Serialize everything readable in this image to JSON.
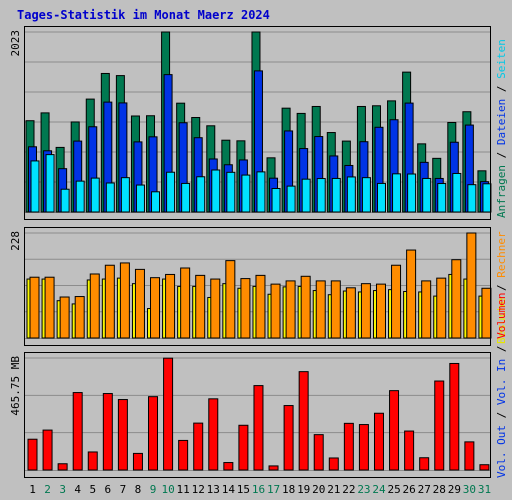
{
  "title": "Tages-Statistik im Monat Maerz 2024",
  "colors": {
    "title": "#0000cc",
    "anfragen": "#007850",
    "dateien": "#0033e6",
    "seiten": "#00e1ff",
    "besuche": "#f8f800",
    "rechner": "#ff8c00",
    "volumen": "#ff0000",
    "weekday": "#000000",
    "weekend": "#007850"
  },
  "right_labels": {
    "top": [
      {
        "text": "Anfragen",
        "color": "#007850"
      },
      {
        "text": "Dateien",
        "color": "#0033e6"
      },
      {
        "text": "Seiten",
        "color": "#00c8e6"
      }
    ],
    "middle": [
      {
        "text": "Besuche",
        "color": "#e6e600"
      },
      {
        "text": "Rechner",
        "color": "#ff8c00"
      }
    ],
    "bottom": [
      {
        "text": "Vol. Out",
        "color": "#0033e6"
      },
      {
        "text": "Vol. In",
        "color": "#0033e6"
      },
      {
        "text": "Volumen",
        "color": "#ff0000"
      }
    ]
  },
  "chart_data": [
    {
      "type": "bar",
      "name_hint": "Anfragen/Dateien/Seiten",
      "y_max_label": "2023",
      "ylim": [
        0,
        2023
      ],
      "categories": [
        "1",
        "2",
        "3",
        "4",
        "5",
        "6",
        "7",
        "8",
        "9",
        "10",
        "11",
        "12",
        "13",
        "14",
        "15",
        "16",
        "17",
        "18",
        "19",
        "20",
        "21",
        "22",
        "23",
        "24",
        "25",
        "26",
        "27",
        "28",
        "29",
        "30",
        "31"
      ],
      "weekend": [
        2,
        3,
        9,
        10,
        16,
        17,
        23,
        24,
        30,
        31
      ],
      "series": [
        {
          "name": "Anfragen",
          "values": [
            1026,
            1114,
            726,
            1012,
            1269,
            1557,
            1533,
            1079,
            1082,
            2023,
            1223,
            1062,
            969,
            807,
            800,
            2023,
            609,
            1167,
            1108,
            1186,
            893,
            797,
            1186,
            1194,
            1249,
            1572,
            766,
            603,
            1006,
            1127,
            463
          ]
        },
        {
          "name": "Dateien",
          "values": [
            733,
            688,
            487,
            797,
            958,
            1235,
            1226,
            788,
            845,
            1544,
            1003,
            835,
            596,
            531,
            585,
            1586,
            380,
            911,
            713,
            848,
            630,
            523,
            790,
            952,
            1037,
            1224,
            558,
            377,
            784,
            977,
            341
          ]
        },
        {
          "name": "Seiten",
          "values": [
            574,
            645,
            256,
            347,
            381,
            326,
            386,
            303,
            227,
            447,
            321,
            396,
            472,
            446,
            415,
            451,
            264,
            291,
            369,
            376,
            377,
            394,
            386,
            321,
            429,
            427,
            377,
            320,
            433,
            307,
            317
          ]
        }
      ]
    },
    {
      "type": "bar",
      "name_hint": "Besuche/Rechner",
      "y_max_label": "228",
      "ylim": [
        0,
        228
      ],
      "categories": [
        "1",
        "2",
        "3",
        "4",
        "5",
        "6",
        "7",
        "8",
        "9",
        "10",
        "11",
        "12",
        "13",
        "14",
        "15",
        "16",
        "17",
        "18",
        "19",
        "20",
        "21",
        "22",
        "23",
        "24",
        "25",
        "26",
        "27",
        "28",
        "29",
        "30",
        "31"
      ],
      "series": [
        {
          "name": "Besuche",
          "values": [
            128,
            128,
            81,
            74,
            126,
            128,
            130,
            118,
            64,
            128,
            112,
            112,
            88,
            118,
            108,
            112,
            95,
            111,
            112,
            103,
            94,
            102,
            100,
            103,
            105,
            101,
            100,
            91,
            138,
            128,
            91
          ]
        },
        {
          "name": "Rechner",
          "values": [
            132,
            132,
            89,
            90,
            139,
            158,
            163,
            149,
            131,
            138,
            152,
            136,
            128,
            168,
            129,
            136,
            117,
            124,
            134,
            124,
            124,
            109,
            118,
            117,
            158,
            191,
            124,
            130,
            170,
            228,
            108
          ]
        }
      ]
    },
    {
      "type": "bar",
      "name_hint": "Volumen",
      "y_max_label": "465.75 MB",
      "ylim": [
        0,
        465.75
      ],
      "categories": [
        "1",
        "2",
        "3",
        "4",
        "5",
        "6",
        "7",
        "8",
        "9",
        "10",
        "11",
        "12",
        "13",
        "14",
        "15",
        "16",
        "17",
        "18",
        "19",
        "20",
        "21",
        "22",
        "23",
        "24",
        "25",
        "26",
        "27",
        "28",
        "29",
        "30",
        "31"
      ],
      "series": [
        {
          "name": "Volumen",
          "values": [
            128,
            166,
            26,
            322,
            75,
            318,
            293,
            69,
            305,
            465,
            123,
            195,
            296,
            31,
            186,
            351,
            17,
            268,
            409,
            147,
            50,
            194,
            189,
            236,
            330,
            162,
            51,
            370,
            443,
            117,
            22
          ]
        }
      ]
    }
  ]
}
